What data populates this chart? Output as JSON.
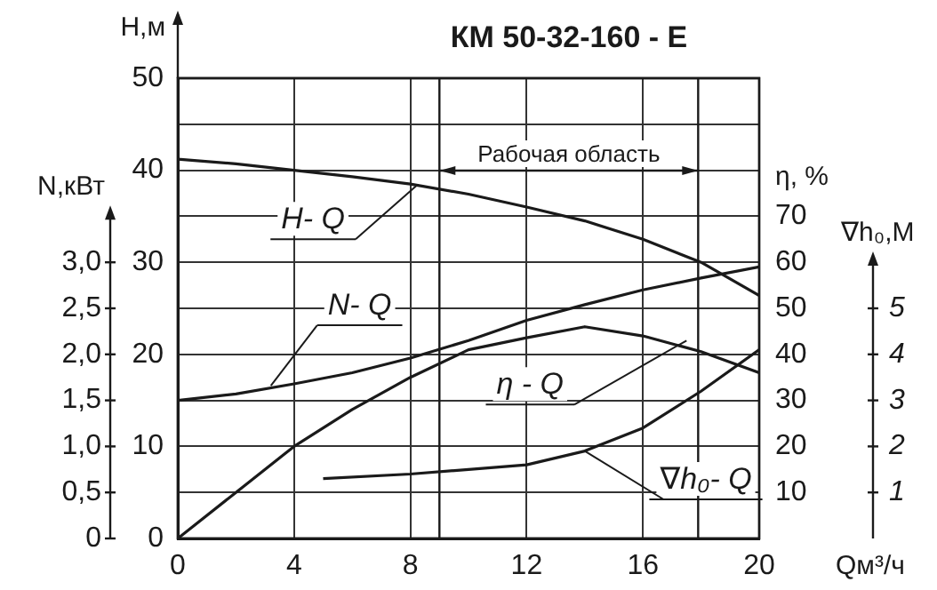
{
  "chart_data": [
    {
      "type": "line",
      "title": "КМ 50-32-160 - Е",
      "xlabel": "Qм³/ч",
      "ylabel": "H,м",
      "y2label": "N,кВт",
      "y3label": "η, %",
      "x": [
        0,
        2,
        4,
        6,
        8,
        10,
        12,
        14,
        16,
        18,
        20
      ],
      "series": [
        {
          "color": "#1a1a1a",
          "values": [
            41.2,
            40.7,
            40,
            39.3,
            38.5,
            37.4,
            36,
            34.5,
            32.5,
            30,
            26.4
          ]
        },
        {
          "color": "#1a1a1a",
          "axis": "y2",
          "values": [
            1.5,
            1.57,
            1.68,
            1.8,
            1.96,
            2.15,
            2.37,
            2.54,
            2.7,
            2.83,
            2.95
          ]
        },
        {
          "color": "#1a1a1a",
          "axis": "y3",
          "values": [
            0,
            10,
            20,
            28,
            35,
            41,
            43.6,
            46,
            44,
            40.6,
            36
          ]
        }
      ],
      "xlim": [
        0,
        20
      ],
      "xticks": [
        0,
        4,
        8,
        12,
        16,
        20
      ],
      "ylim": [
        0,
        50
      ],
      "yticks": [
        0,
        {
          "value": 5,
          "label": null
        },
        10,
        {
          "value": 15,
          "label": null
        },
        20,
        {
          "value": 25,
          "label": null
        },
        30,
        {
          "value": 35,
          "label": null
        },
        40,
        {
          "value": 45,
          "label": null
        },
        50
      ],
      "y2lim": [
        0,
        5
      ],
      "y2ticks": [
        0,
        {
          "value": 0.5,
          "label": "0,5"
        },
        {
          "value": 1,
          "label": "1,0"
        },
        {
          "value": 1.5,
          "label": "1,5"
        },
        {
          "value": 2,
          "label": "2,0"
        },
        {
          "value": 2.5,
          "label": "2,5"
        },
        {
          "value": 3,
          "label": "3,0"
        }
      ],
      "y3lim": [
        0,
        100
      ],
      "y3ticks": [
        10,
        20,
        30,
        40,
        50,
        60,
        70
      ],
      "ref_lines": [
        {
          "axis": "x",
          "value": 9
        },
        {
          "axis": "x",
          "value": 17.9
        }
      ],
      "annotations": [
        "Рабочая область",
        {
          "text": "H- Q",
          "x": 8.2,
          "y": 38.3
        },
        {
          "text": "N- Q",
          "x": 3.2,
          "y": 16.6
        },
        {
          "text": "η - Q",
          "x": 17.5,
          "y": 21.5
        }
      ],
      "grid": true,
      "marker": "none",
      "line_style": "solid",
      "legend": false
    },
    {
      "type": "line",
      "ylabel": "∇h₀,М",
      "x": [
        5,
        8,
        10,
        12,
        14,
        16,
        18,
        20
      ],
      "series": [
        {
          "color": "#1a1a1a",
          "values": [
            1.3,
            1.4,
            1.5,
            1.6,
            1.9,
            2.4,
            3.2,
            4.1
          ]
        }
      ],
      "xlim": [
        0,
        20
      ],
      "ylim": [
        0,
        10
      ],
      "yticks": [
        1,
        2,
        3,
        4,
        5
      ],
      "tick_labels": "y",
      "annotations": [
        "∇h₀- Q"
      ],
      "marker": "none",
      "line_style": "solid",
      "legend": false
    }
  ]
}
